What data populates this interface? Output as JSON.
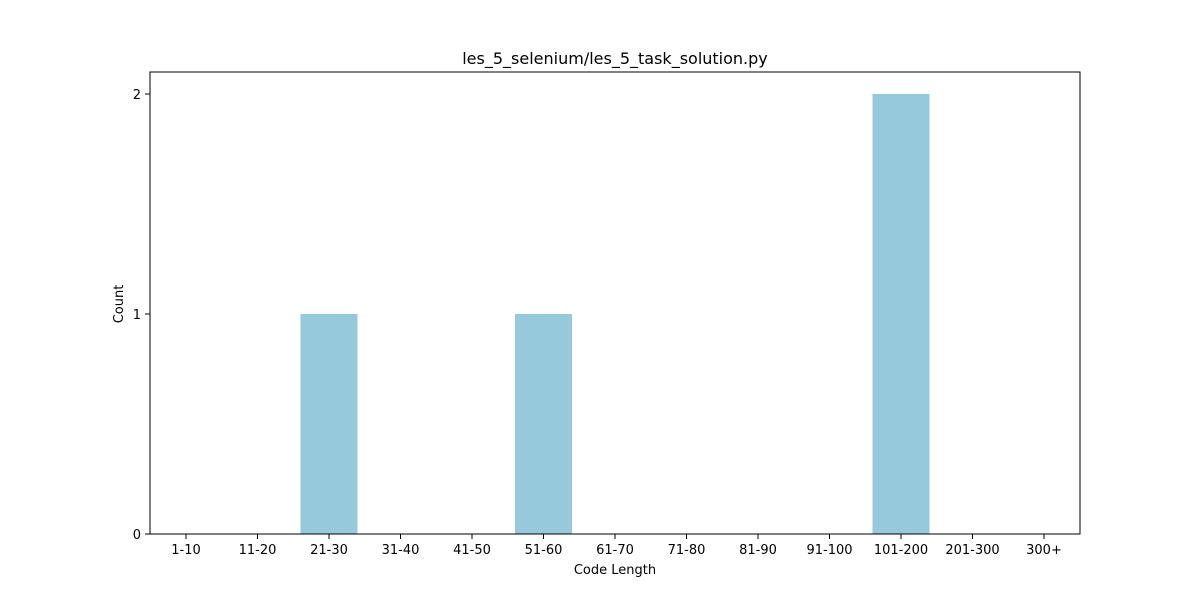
{
  "chart_data": {
    "type": "bar",
    "title": "les_5_selenium/les_5_task_solution.py",
    "xlabel": "Code Length",
    "ylabel": "Count",
    "categories": [
      "1-10",
      "11-20",
      "21-30",
      "31-40",
      "41-50",
      "51-60",
      "61-70",
      "71-80",
      "81-90",
      "91-100",
      "101-200",
      "201-300",
      "300+"
    ],
    "values": [
      0,
      0,
      1,
      0,
      0,
      1,
      0,
      0,
      0,
      0,
      2,
      0,
      0
    ],
    "ylim": [
      0,
      2.1
    ],
    "yticks": [
      0,
      1,
      2
    ],
    "grid": false,
    "legend": "none",
    "bar_color": "#96c9dc"
  }
}
